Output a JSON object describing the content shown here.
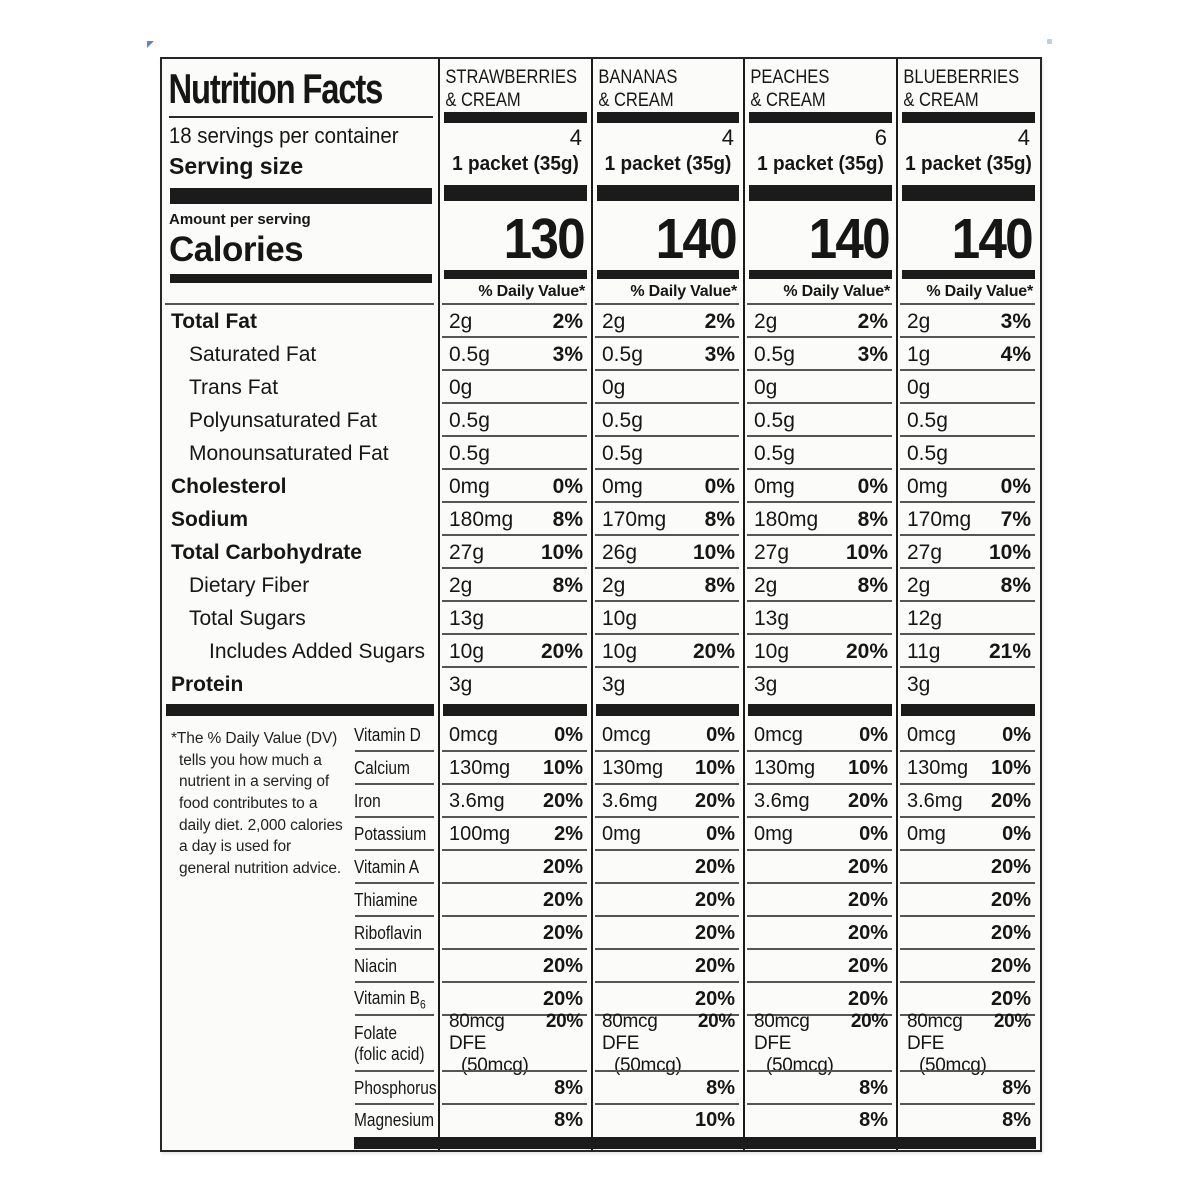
{
  "header": {
    "title": "Nutrition Facts",
    "servings_per_container": "18 servings per container",
    "serving_size_label": "Serving size",
    "amount_per_serving": "Amount per serving",
    "calories_label": "Calories",
    "daily_value_header": "% Daily Value*"
  },
  "nutrient_labels": [
    {
      "label": "Total Fat",
      "bold": true,
      "indent": 0
    },
    {
      "label": "Saturated Fat",
      "bold": false,
      "indent": 1
    },
    {
      "label": "Trans Fat",
      "bold": false,
      "indent": 1
    },
    {
      "label": "Polyunsaturated Fat",
      "bold": false,
      "indent": 1
    },
    {
      "label": "Monounsaturated Fat",
      "bold": false,
      "indent": 1
    },
    {
      "label": "Cholesterol",
      "bold": true,
      "indent": 0
    },
    {
      "label": "Sodium",
      "bold": true,
      "indent": 0
    },
    {
      "label": "Total Carbohydrate",
      "bold": true,
      "indent": 0
    },
    {
      "label": "Dietary Fiber",
      "bold": false,
      "indent": 1
    },
    {
      "label": "Total Sugars",
      "bold": false,
      "indent": 1
    },
    {
      "label": "Includes Added Sugars",
      "bold": false,
      "indent": 2
    },
    {
      "label": "Protein",
      "bold": true,
      "indent": 0
    }
  ],
  "micronutrient_labels": [
    {
      "text": "Vitamin D"
    },
    {
      "text": "Calcium"
    },
    {
      "text": "Iron"
    },
    {
      "text": "Potassium"
    },
    {
      "text": "Vitamin A"
    },
    {
      "text": "Thiamine"
    },
    {
      "text": "Riboflavin"
    },
    {
      "text": "Niacin"
    },
    {
      "text": "Vitamin B",
      "sub": "6"
    },
    {
      "text": "Folate",
      "line2": "(folic acid)"
    },
    {
      "text": "Phosphorus"
    },
    {
      "text": "Magnesium"
    }
  ],
  "columns": [
    {
      "name_line1": "STRAWBERRIES",
      "name_line2": "& CREAM",
      "packet_count": "4",
      "serving": "1 packet (35g)",
      "calories": "130",
      "nutrients": [
        {
          "amount": "2g",
          "dv": "2%"
        },
        {
          "amount": "0.5g",
          "dv": "3%"
        },
        {
          "amount": "0g",
          "dv": ""
        },
        {
          "amount": "0.5g",
          "dv": ""
        },
        {
          "amount": "0.5g",
          "dv": ""
        },
        {
          "amount": "0mg",
          "dv": "0%"
        },
        {
          "amount": "180mg",
          "dv": "8%"
        },
        {
          "amount": "27g",
          "dv": "10%"
        },
        {
          "amount": "2g",
          "dv": "8%"
        },
        {
          "amount": "13g",
          "dv": ""
        },
        {
          "amount": "10g",
          "dv": "20%"
        },
        {
          "amount": "3g",
          "dv": ""
        }
      ],
      "micros": [
        {
          "amount": "0mcg",
          "dv": "0%"
        },
        {
          "amount": "130mg",
          "dv": "10%"
        },
        {
          "amount": "3.6mg",
          "dv": "20%"
        },
        {
          "amount": "100mg",
          "dv": "2%"
        },
        {
          "amount": "",
          "dv": "20%"
        },
        {
          "amount": "",
          "dv": "20%"
        },
        {
          "amount": "",
          "dv": "20%"
        },
        {
          "amount": "",
          "dv": "20%"
        },
        {
          "amount": "",
          "dv": "20%"
        },
        {
          "amount": "80mcg DFE",
          "dv": "20%",
          "amount2": "(50mcg)"
        },
        {
          "amount": "",
          "dv": "8%"
        },
        {
          "amount": "",
          "dv": "8%"
        }
      ]
    },
    {
      "name_line1": "BANANAS",
      "name_line2": "& CREAM",
      "packet_count": "4",
      "serving": "1 packet (35g)",
      "calories": "140",
      "nutrients": [
        {
          "amount": "2g",
          "dv": "2%"
        },
        {
          "amount": "0.5g",
          "dv": "3%"
        },
        {
          "amount": "0g",
          "dv": ""
        },
        {
          "amount": "0.5g",
          "dv": ""
        },
        {
          "amount": "0.5g",
          "dv": ""
        },
        {
          "amount": "0mg",
          "dv": "0%"
        },
        {
          "amount": "170mg",
          "dv": "8%"
        },
        {
          "amount": "26g",
          "dv": "10%"
        },
        {
          "amount": "2g",
          "dv": "8%"
        },
        {
          "amount": "10g",
          "dv": ""
        },
        {
          "amount": "10g",
          "dv": "20%"
        },
        {
          "amount": "3g",
          "dv": ""
        }
      ],
      "micros": [
        {
          "amount": "0mcg",
          "dv": "0%"
        },
        {
          "amount": "130mg",
          "dv": "10%"
        },
        {
          "amount": "3.6mg",
          "dv": "20%"
        },
        {
          "amount": "0mg",
          "dv": "0%"
        },
        {
          "amount": "",
          "dv": "20%"
        },
        {
          "amount": "",
          "dv": "20%"
        },
        {
          "amount": "",
          "dv": "20%"
        },
        {
          "amount": "",
          "dv": "20%"
        },
        {
          "amount": "",
          "dv": "20%"
        },
        {
          "amount": "80mcg DFE",
          "dv": "20%",
          "amount2": "(50mcg)"
        },
        {
          "amount": "",
          "dv": "8%"
        },
        {
          "amount": "",
          "dv": "10%"
        }
      ]
    },
    {
      "name_line1": "PEACHES",
      "name_line2": "& CREAM",
      "packet_count": "6",
      "serving": "1 packet (35g)",
      "calories": "140",
      "nutrients": [
        {
          "amount": "2g",
          "dv": "2%"
        },
        {
          "amount": "0.5g",
          "dv": "3%"
        },
        {
          "amount": "0g",
          "dv": ""
        },
        {
          "amount": "0.5g",
          "dv": ""
        },
        {
          "amount": "0.5g",
          "dv": ""
        },
        {
          "amount": "0mg",
          "dv": "0%"
        },
        {
          "amount": "180mg",
          "dv": "8%"
        },
        {
          "amount": "27g",
          "dv": "10%"
        },
        {
          "amount": "2g",
          "dv": "8%"
        },
        {
          "amount": "13g",
          "dv": ""
        },
        {
          "amount": "10g",
          "dv": "20%"
        },
        {
          "amount": "3g",
          "dv": ""
        }
      ],
      "micros": [
        {
          "amount": "0mcg",
          "dv": "0%"
        },
        {
          "amount": "130mg",
          "dv": "10%"
        },
        {
          "amount": "3.6mg",
          "dv": "20%"
        },
        {
          "amount": "0mg",
          "dv": "0%"
        },
        {
          "amount": "",
          "dv": "20%"
        },
        {
          "amount": "",
          "dv": "20%"
        },
        {
          "amount": "",
          "dv": "20%"
        },
        {
          "amount": "",
          "dv": "20%"
        },
        {
          "amount": "",
          "dv": "20%"
        },
        {
          "amount": "80mcg DFE",
          "dv": "20%",
          "amount2": "(50mcg)"
        },
        {
          "amount": "",
          "dv": "8%"
        },
        {
          "amount": "",
          "dv": "8%"
        }
      ]
    },
    {
      "name_line1": "BLUEBERRIES",
      "name_line2": "& CREAM",
      "packet_count": "4",
      "serving": "1 packet (35g)",
      "calories": "140",
      "nutrients": [
        {
          "amount": "2g",
          "dv": "3%"
        },
        {
          "amount": "1g",
          "dv": "4%"
        },
        {
          "amount": "0g",
          "dv": ""
        },
        {
          "amount": "0.5g",
          "dv": ""
        },
        {
          "amount": "0.5g",
          "dv": ""
        },
        {
          "amount": "0mg",
          "dv": "0%"
        },
        {
          "amount": "170mg",
          "dv": "7%"
        },
        {
          "amount": "27g",
          "dv": "10%"
        },
        {
          "amount": "2g",
          "dv": "8%"
        },
        {
          "amount": "12g",
          "dv": ""
        },
        {
          "amount": "11g",
          "dv": "21%"
        },
        {
          "amount": "3g",
          "dv": ""
        }
      ],
      "micros": [
        {
          "amount": "0mcg",
          "dv": "0%"
        },
        {
          "amount": "130mg",
          "dv": "10%"
        },
        {
          "amount": "3.6mg",
          "dv": "20%"
        },
        {
          "amount": "0mg",
          "dv": "0%"
        },
        {
          "amount": "",
          "dv": "20%"
        },
        {
          "amount": "",
          "dv": "20%"
        },
        {
          "amount": "",
          "dv": "20%"
        },
        {
          "amount": "",
          "dv": "20%"
        },
        {
          "amount": "",
          "dv": "20%"
        },
        {
          "amount": "80mcg DFE",
          "dv": "20%",
          "amount2": "(50mcg)"
        },
        {
          "amount": "",
          "dv": "8%"
        },
        {
          "amount": "",
          "dv": "8%"
        }
      ]
    }
  ],
  "footnote": "*The % Daily Value (DV) tells you how much a nutrient in a serving of food contributes to a daily diet. 2,000 calories a day is used for general nutrition advice."
}
